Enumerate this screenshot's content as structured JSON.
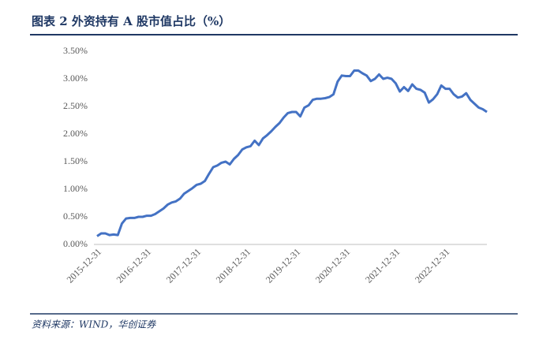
{
  "chart_data": {
    "type": "line",
    "title": "图表 2 外资持有 A 股市值占比（%）",
    "source": "资料来源：WIND，华创证券",
    "categories": [
      "2015-12-31",
      null,
      null,
      null,
      null,
      null,
      null,
      null,
      null,
      null,
      null,
      null,
      "2016-12-31",
      null,
      null,
      null,
      null,
      null,
      null,
      null,
      null,
      null,
      null,
      null,
      "2017-12-31",
      null,
      null,
      null,
      null,
      null,
      null,
      null,
      null,
      null,
      null,
      null,
      "2018-12-31",
      null,
      null,
      null,
      null,
      null,
      null,
      null,
      null,
      null,
      null,
      null,
      "2019-12-31",
      null,
      null,
      null,
      null,
      null,
      null,
      null,
      null,
      null,
      null,
      null,
      "2020-12-31",
      null,
      null,
      null,
      null,
      null,
      null,
      null,
      null,
      null,
      null,
      null,
      "2021-12-31",
      null,
      null,
      null,
      null,
      null,
      null,
      null,
      null,
      null,
      null,
      null,
      "2022-12-31",
      null,
      null,
      null,
      null,
      null,
      null,
      null,
      null,
      null,
      null
    ],
    "series": [
      {
        "name": "外资持有A股市值占比",
        "color": "#4472c4",
        "values": [
          0.15,
          0.2,
          0.2,
          0.17,
          0.18,
          0.17,
          0.38,
          0.47,
          0.48,
          0.48,
          0.5,
          0.5,
          0.52,
          0.52,
          0.55,
          0.6,
          0.65,
          0.72,
          0.76,
          0.78,
          0.83,
          0.92,
          0.97,
          1.02,
          1.08,
          1.1,
          1.15,
          1.28,
          1.4,
          1.43,
          1.48,
          1.5,
          1.45,
          1.55,
          1.62,
          1.72,
          1.76,
          1.78,
          1.88,
          1.8,
          1.92,
          1.98,
          2.05,
          2.13,
          2.2,
          2.3,
          2.38,
          2.4,
          2.4,
          2.32,
          2.48,
          2.52,
          2.62,
          2.64,
          2.64,
          2.65,
          2.67,
          2.72,
          2.95,
          3.06,
          3.05,
          3.05,
          3.15,
          3.15,
          3.1,
          3.06,
          2.96,
          3.0,
          3.08,
          3.0,
          3.02,
          3.0,
          2.92,
          2.77,
          2.85,
          2.78,
          2.9,
          2.82,
          2.8,
          2.75,
          2.57,
          2.63,
          2.72,
          2.88,
          2.82,
          2.82,
          2.72,
          2.66,
          2.68,
          2.74,
          2.62,
          2.55,
          2.48,
          2.45,
          2.4
        ]
      }
    ],
    "ylim": [
      0,
      3.5
    ],
    "yticks": [
      {
        "value": 0,
        "label": "0.00%"
      },
      {
        "value": 0.5,
        "label": "0.50%"
      },
      {
        "value": 1,
        "label": "1.00%"
      },
      {
        "value": 1.5,
        "label": "1.50%"
      },
      {
        "value": 2,
        "label": "2.00%"
      },
      {
        "value": 2.5,
        "label": "2.50%"
      },
      {
        "value": 3,
        "label": "3.00%"
      },
      {
        "value": 3.5,
        "label": "3.50%"
      }
    ],
    "grid": false
  }
}
